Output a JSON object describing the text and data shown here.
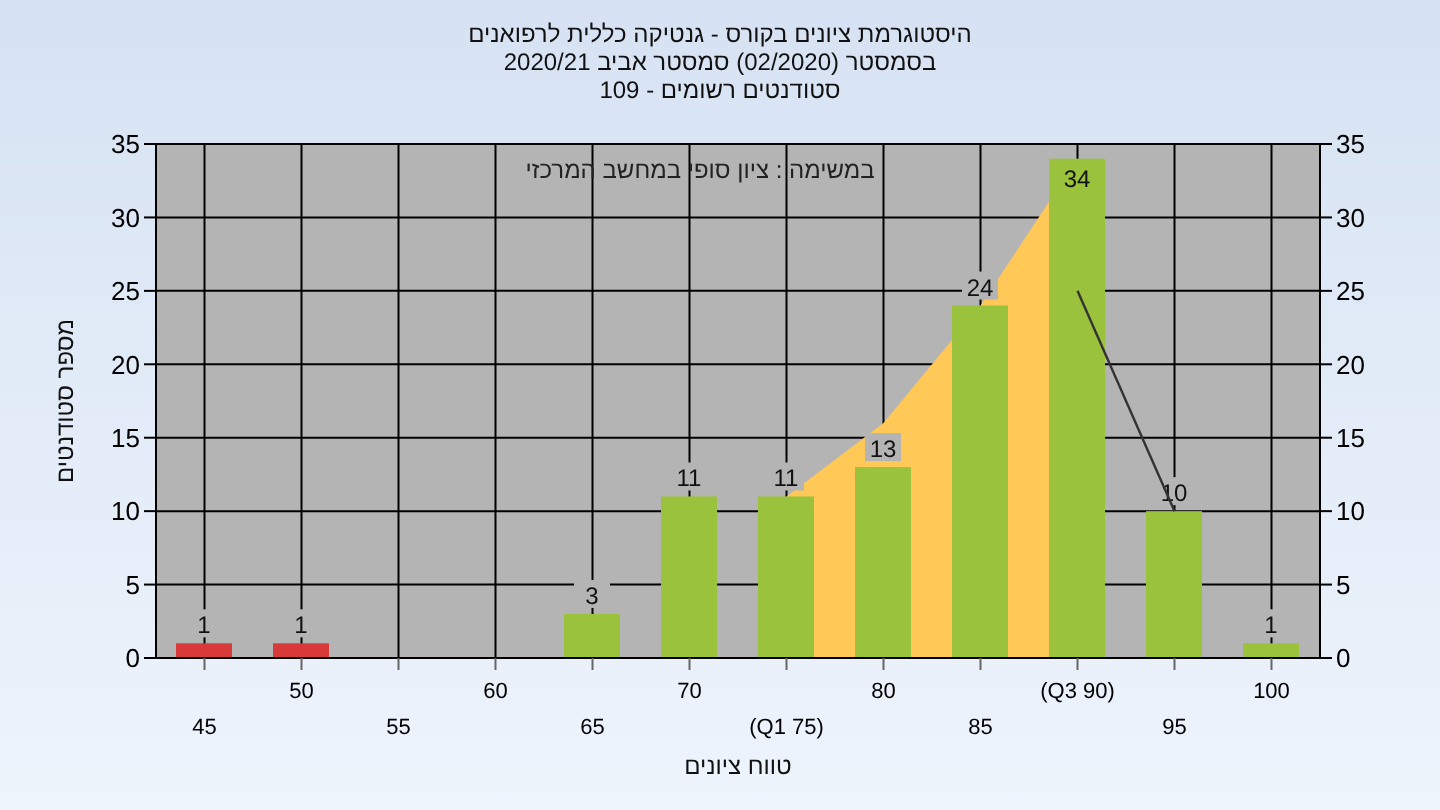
{
  "chart_data": {
    "type": "bar",
    "title": "היסטוגרמת ציונים בקורס - גנטיקה כללית לרפואנים",
    "subtitle": "בסמסטר  (02/2020)  סמסטר אביב 2020/21\nסטודנטים רשומים - 109",
    "xlabel": "טווח ציונים",
    "ylabel": "מספר סטודנטים",
    "annotations": [
      "במשימה : ציון סופי במחשב המרכזי"
    ],
    "categories": [
      "45",
      "50",
      "55",
      "60",
      "65",
      "70",
      "(Q1 75)",
      "80",
      "85",
      "(Q3 90)",
      "95",
      "100"
    ],
    "series": [
      {
        "type": "area",
        "color": "#ffc857",
        "values": [
          null,
          null,
          null,
          null,
          null,
          null,
          11,
          16,
          24,
          34,
          null,
          null
        ]
      },
      {
        "type": "line",
        "color": "#333333",
        "values": [
          null,
          null,
          null,
          null,
          null,
          null,
          null,
          null,
          null,
          25,
          10,
          null
        ]
      },
      {
        "type": "bar",
        "colors": [
          "#d83a3a",
          "#d83a3a",
          "#9bc23c",
          "#9bc23c",
          "#9bc23c",
          "#9bc23c",
          "#9bc23c",
          "#9bc23c",
          "#9bc23c",
          "#9bc23c",
          "#9bc23c",
          "#9bc23c"
        ],
        "values": [
          1,
          1,
          0,
          0,
          3,
          11,
          11,
          13,
          24,
          34,
          10,
          1
        ],
        "value_labels": [
          "1",
          "1",
          null,
          null,
          "3",
          "11",
          "11",
          "13",
          "24",
          "34",
          "10",
          "1"
        ]
      }
    ],
    "ylim": [
      0,
      35
    ],
    "yticks": [
      0,
      5,
      10,
      15,
      20,
      25,
      30,
      35
    ],
    "y2lim": [
      0,
      35
    ],
    "y2ticks": [
      0,
      5,
      10,
      15,
      20,
      25,
      30,
      35
    ],
    "grid": true
  }
}
